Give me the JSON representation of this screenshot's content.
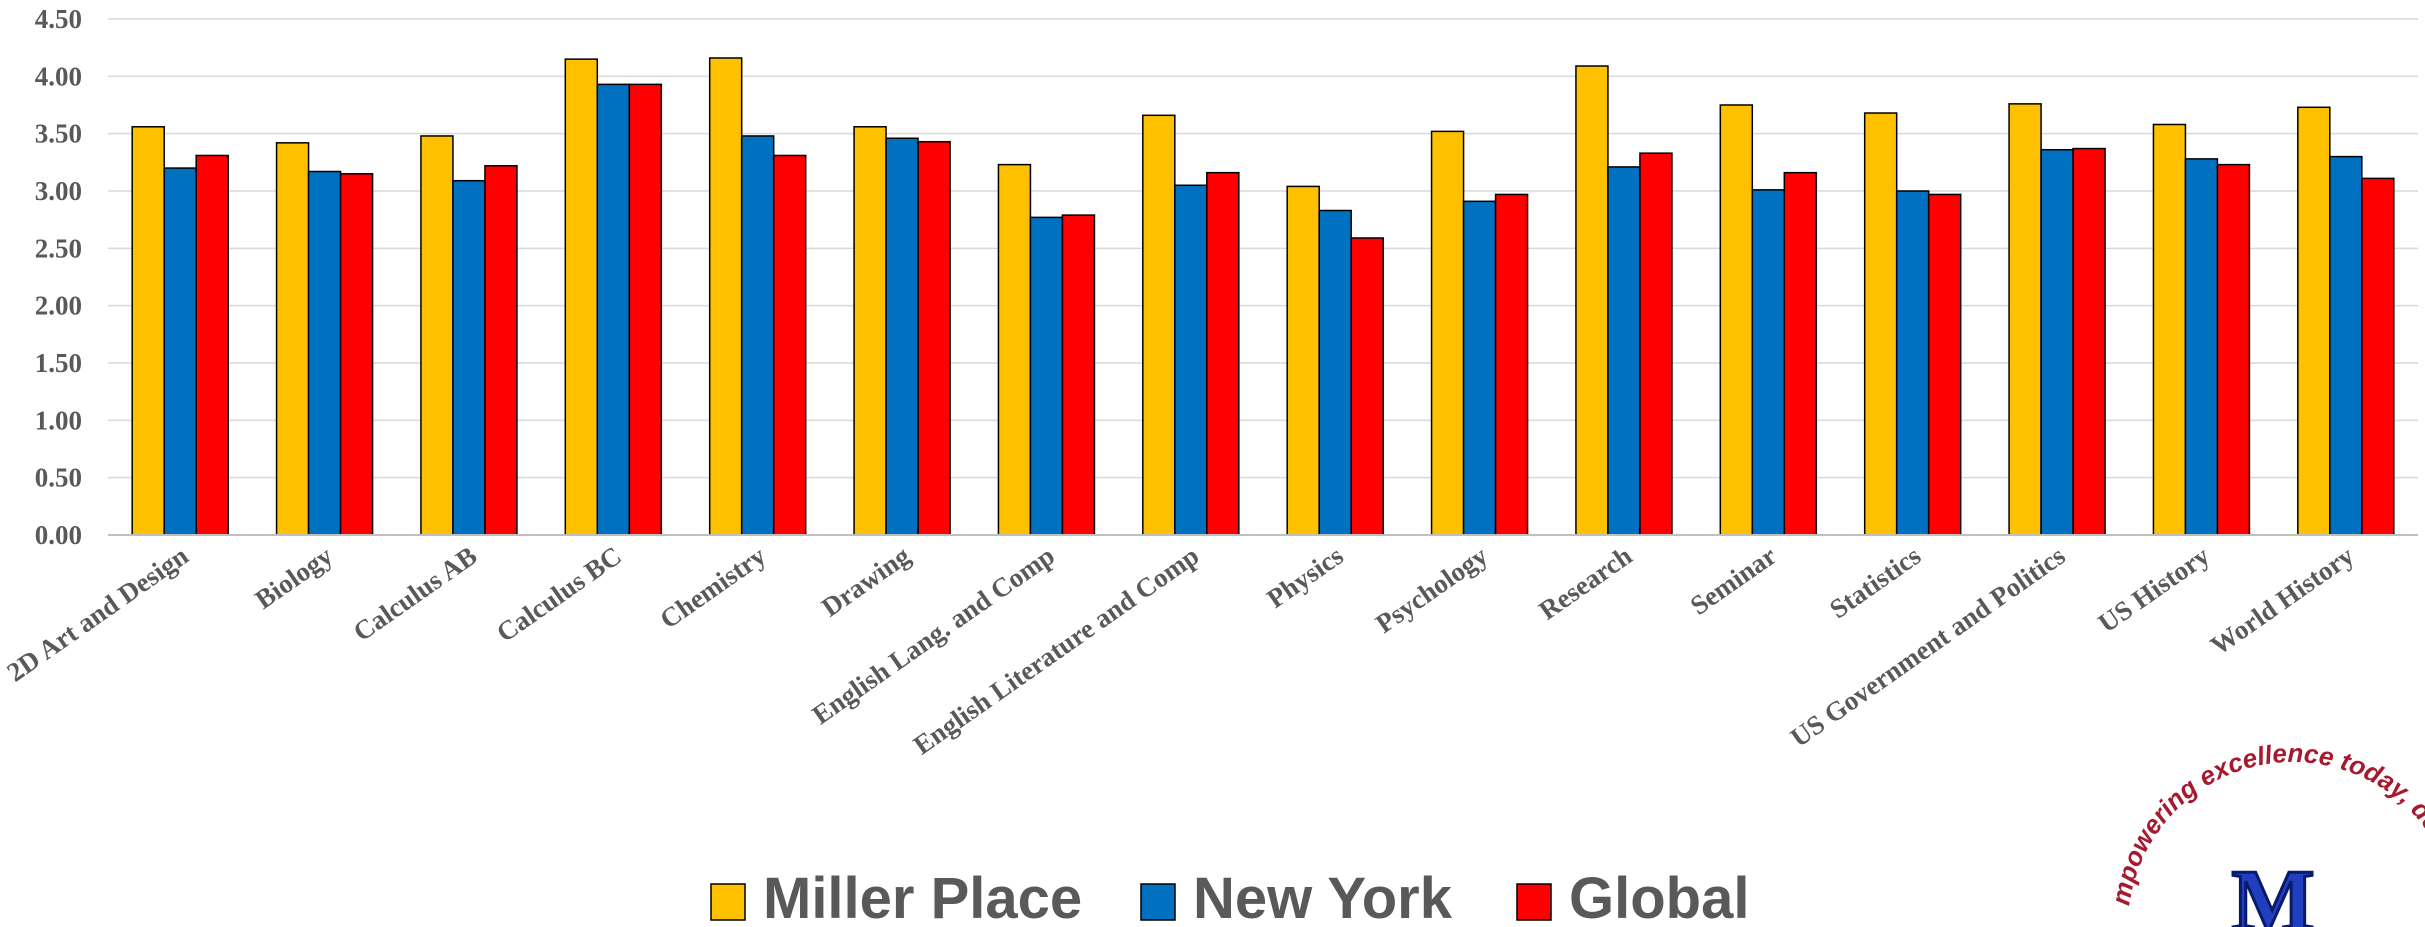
{
  "chart_data": {
    "type": "bar",
    "title": "",
    "xlabel": "",
    "ylabel": "",
    "ylim": [
      0,
      4.5
    ],
    "yticks": [
      "0.00",
      "0.50",
      "1.00",
      "1.50",
      "2.00",
      "2.50",
      "3.00",
      "3.50",
      "4.00",
      "4.50"
    ],
    "grid": true,
    "legend_position": "bottom",
    "categories": [
      "2D Art and Design",
      "Biology",
      "Calculus AB",
      "Calculus BC",
      "Chemistry",
      "Drawing",
      "English Lang. and Comp",
      "English Literature and Comp",
      "Physics",
      "Psychology",
      "Research",
      "Seminar",
      "Statistics",
      "US Government and Politics",
      "US History",
      "World History"
    ],
    "series": [
      {
        "name": "Miller Place",
        "color": "#FFC000",
        "values": [
          3.56,
          3.42,
          3.48,
          4.15,
          4.16,
          3.56,
          3.23,
          3.66,
          3.04,
          3.52,
          4.09,
          3.75,
          3.68,
          3.76,
          3.58,
          3.73
        ]
      },
      {
        "name": "New York",
        "color": "#0070C0",
        "values": [
          3.2,
          3.17,
          3.09,
          3.93,
          3.48,
          3.46,
          2.77,
          3.05,
          2.83,
          2.91,
          3.21,
          3.01,
          3.0,
          3.36,
          3.28,
          3.3
        ]
      },
      {
        "name": "Global",
        "color": "#FF0000",
        "values": [
          3.31,
          3.15,
          3.22,
          3.93,
          3.31,
          3.43,
          2.79,
          3.16,
          2.59,
          2.97,
          3.33,
          3.16,
          2.97,
          3.37,
          3.23,
          3.11
        ]
      }
    ]
  },
  "logo": {
    "motto": "mpowering excellence today, developing t",
    "letter": "M"
  }
}
